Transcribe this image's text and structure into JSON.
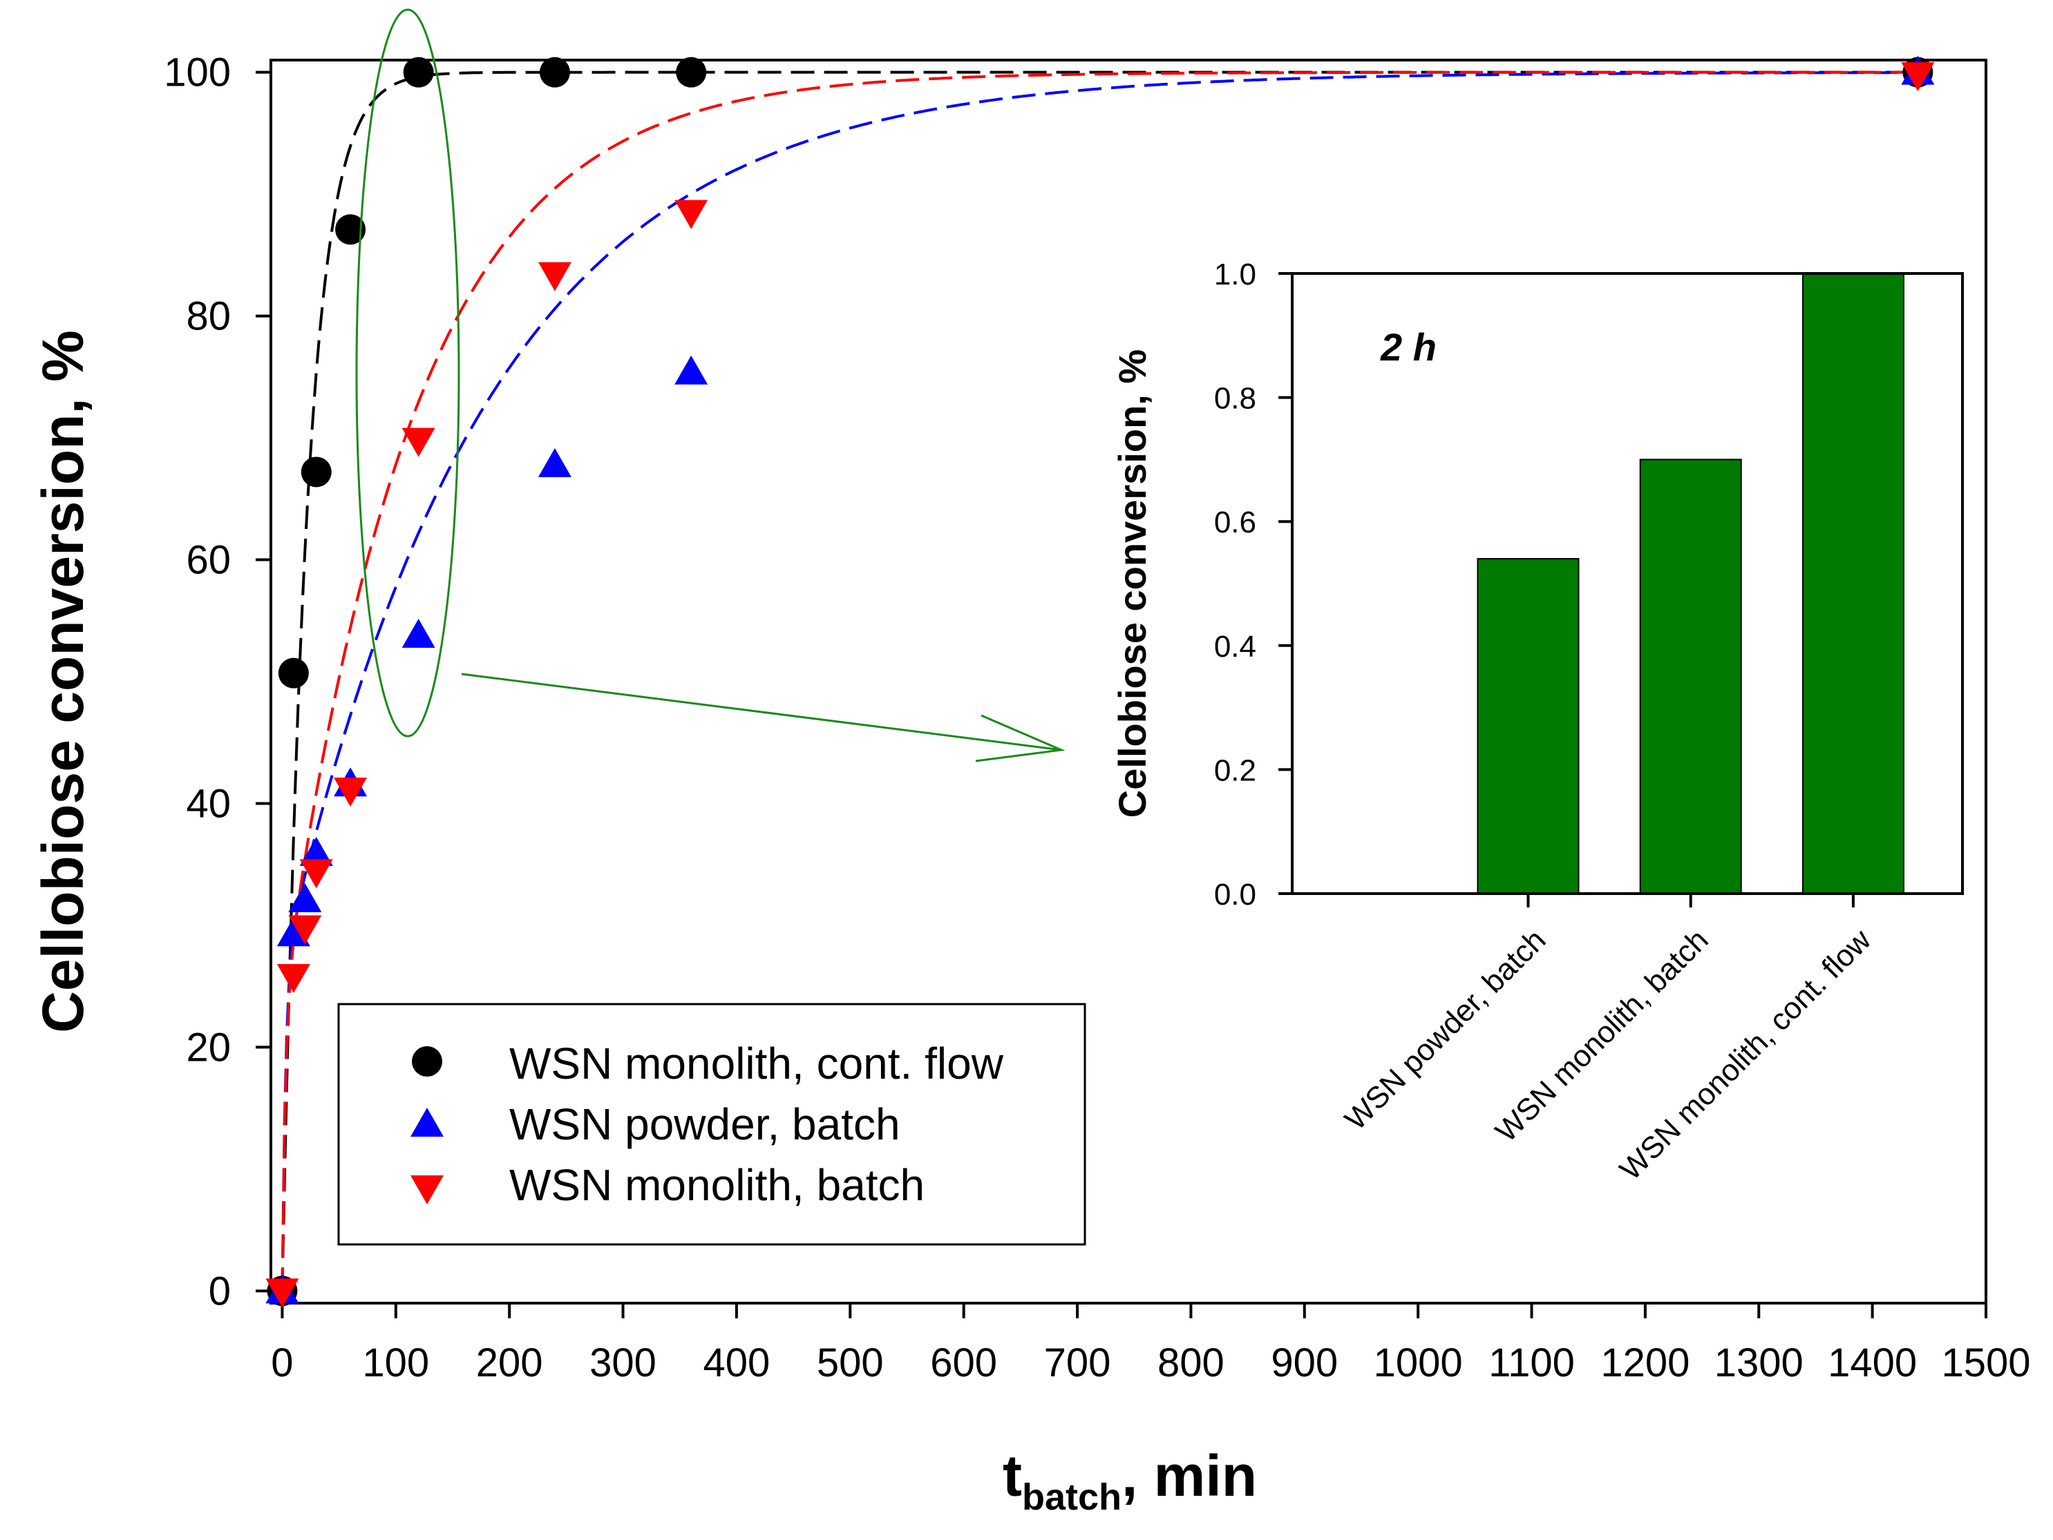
{
  "colors": {
    "cont_flow": "#000000",
    "powder": "#0000ff",
    "monolith_batch": "#ff0000",
    "bars": "#007a00",
    "annotation": "#1a8a1a"
  },
  "chart_data": [
    {
      "type": "scatter",
      "ylabel": "Cellobiose conversion, %",
      "xlabel_main": "t",
      "xlabel_sub": "batch",
      "xlabel_tail": ", min",
      "xlim": [
        -10,
        1500
      ],
      "ylim": [
        -1,
        101
      ],
      "xticks": [
        "0",
        "100",
        "200",
        "300",
        "400",
        "500",
        "600",
        "700",
        "800",
        "900",
        "1000",
        "1100",
        "1200",
        "1300",
        "1400",
        "1500"
      ],
      "yticks": [
        "0",
        "20",
        "40",
        "60",
        "80",
        "100"
      ],
      "legend_position": "lower-left",
      "series": [
        {
          "name": "WSN monolith, cont. flow",
          "marker": "circle",
          "x": [
            0,
            10,
            30,
            60,
            120,
            240,
            360,
            1440
          ],
          "y": [
            0,
            50.7,
            67.2,
            87.1,
            100,
            100,
            100,
            100
          ]
        },
        {
          "name": "WSN powder, batch",
          "marker": "triangle-up",
          "x": [
            0,
            10,
            20,
            30,
            60,
            120,
            240,
            360,
            1440
          ],
          "y": [
            0,
            29.3,
            32.1,
            35.9,
            41.6,
            53.8,
            67.8,
            75.4,
            100
          ]
        },
        {
          "name": "WSN monolith, batch",
          "marker": "triangle-down",
          "x": [
            0,
            10,
            20,
            30,
            60,
            120,
            240,
            360,
            1440
          ],
          "y": [
            0,
            25.8,
            29.8,
            34.4,
            41.1,
            69.8,
            83.4,
            88.5,
            99.8
          ]
        }
      ]
    },
    {
      "type": "bar",
      "title": "2 h",
      "ylabel": "Cellobiose conversion, %",
      "ylim": [
        0,
        1
      ],
      "yticks": [
        "0.0",
        "0.2",
        "0.4",
        "0.6",
        "0.8",
        "1.0"
      ],
      "categories": [
        "WSN powder, batch",
        "WSN monolith, batch",
        "WSN monolith, cont. flow"
      ],
      "values": [
        0.54,
        0.7,
        1.0
      ]
    }
  ]
}
